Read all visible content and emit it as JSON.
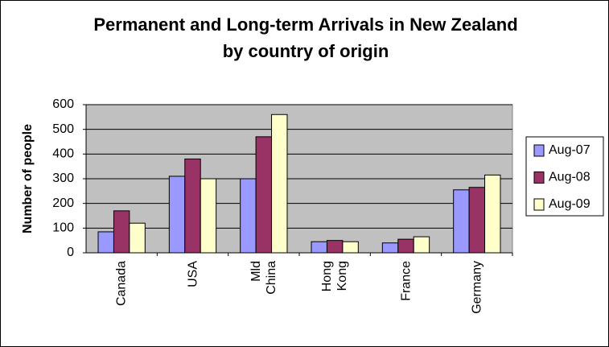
{
  "chart_data": {
    "type": "bar",
    "title": "Permanent and Long-term Arrivals in New Zealand by country of origin",
    "y_label": "Number of people",
    "categories": [
      "Canada",
      "USA",
      "Mld China",
      "Hong Kong",
      "France",
      "Germany"
    ],
    "series": [
      {
        "name": "Aug-07",
        "color": "#9999ff",
        "values": [
          85,
          310,
          300,
          45,
          40,
          255
        ]
      },
      {
        "name": "Aug-08",
        "color": "#993366",
        "values": [
          170,
          380,
          470,
          50,
          55,
          265
        ]
      },
      {
        "name": "Aug-09",
        "color": "#ffffcc",
        "values": [
          120,
          300,
          560,
          45,
          65,
          315
        ]
      }
    ],
    "ylim": [
      0,
      600
    ],
    "yticks": [
      0,
      100,
      200,
      300,
      400,
      500,
      600
    ],
    "grid": true,
    "legend": "right"
  }
}
